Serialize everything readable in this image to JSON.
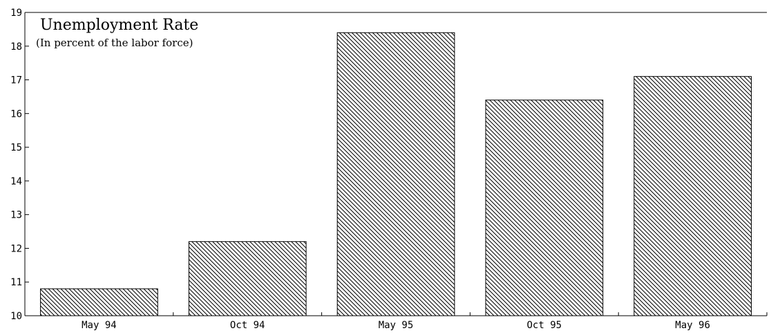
{
  "chart_data": {
    "type": "bar",
    "title": "Unemployment Rate",
    "subtitle": "(In percent of the labor force)",
    "categories": [
      "May 94",
      "Oct 94",
      "May 95",
      "Oct 95",
      "May 96"
    ],
    "values": [
      10.8,
      12.2,
      18.4,
      16.4,
      17.1
    ],
    "ylim": [
      10,
      19
    ],
    "yticks": [
      "10",
      "11",
      "12",
      "13",
      "14",
      "15",
      "16",
      "17",
      "18",
      "19"
    ],
    "xlabel": "",
    "ylabel": "",
    "grid": false,
    "legend": "none",
    "bar_fill": "diagonal-hatch",
    "colors": {
      "bar_stroke": "#000000",
      "hatch": "#000000",
      "background": "#ffffff"
    }
  }
}
